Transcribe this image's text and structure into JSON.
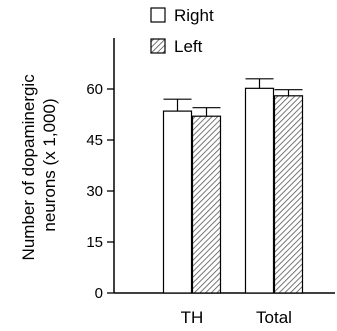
{
  "chart_data": {
    "type": "bar",
    "categories": [
      "TH",
      "Total"
    ],
    "series": [
      {
        "name": "Right",
        "values": [
          53.5,
          60.2
        ],
        "errors": [
          3.5,
          2.8
        ],
        "fill": "#ffffff",
        "pattern": "none"
      },
      {
        "name": "Left",
        "values": [
          52.0,
          58.0
        ],
        "errors": [
          2.5,
          1.8
        ],
        "fill": "#ffffff",
        "pattern": "diagonal-hatch"
      }
    ],
    "ylabel_lines": [
      "Number of dopaminergic",
      "neurons (x 1,000)"
    ],
    "xlabel": "",
    "ylim": [
      0,
      75
    ],
    "yticks": [
      0,
      15,
      30,
      45,
      60
    ],
    "ytick_labels": [
      "0",
      "15",
      "30",
      "45",
      "60"
    ],
    "legend_position": "top",
    "grid": false,
    "colors": {
      "stroke": "#000000",
      "hatch": "#555555",
      "background": "#ffffff"
    }
  }
}
